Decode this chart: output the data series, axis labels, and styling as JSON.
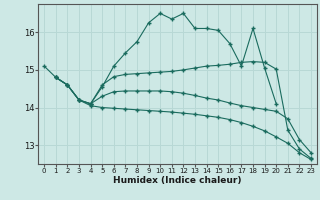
{
  "xlabel": "Humidex (Indice chaleur)",
  "background_color": "#cde8e5",
  "grid_color": "#b8d8d5",
  "line_color": "#1a6b5e",
  "xlim": [
    -0.5,
    23.5
  ],
  "ylim": [
    12.5,
    16.75
  ],
  "yticks": [
    13,
    14,
    15,
    16
  ],
  "xticks": [
    0,
    1,
    2,
    3,
    4,
    5,
    6,
    7,
    8,
    9,
    10,
    11,
    12,
    13,
    14,
    15,
    16,
    17,
    18,
    19,
    20,
    21,
    22,
    23
  ],
  "series": [
    {
      "x": [
        0,
        1,
        2,
        3,
        4,
        5,
        6,
        7,
        8,
        9,
        10,
        11,
        12,
        13,
        14,
        15,
        16,
        17,
        18,
        19,
        20
      ],
      "y": [
        15.1,
        14.8,
        14.6,
        14.2,
        14.1,
        14.55,
        15.1,
        15.45,
        15.75,
        16.25,
        16.5,
        16.35,
        16.5,
        16.1,
        16.1,
        16.05,
        15.7,
        15.1,
        16.1,
        15.05,
        14.1
      ]
    },
    {
      "x": [
        1,
        2,
        3,
        4,
        5,
        6,
        7,
        8,
        9,
        10,
        11,
        12,
        13,
        14,
        15,
        16,
        17,
        18,
        19,
        20,
        21,
        22,
        23
      ],
      "y": [
        14.8,
        14.6,
        14.2,
        14.1,
        14.6,
        14.82,
        14.88,
        14.9,
        14.92,
        14.94,
        14.96,
        15.0,
        15.05,
        15.1,
        15.12,
        15.15,
        15.2,
        15.22,
        15.2,
        15.02,
        13.4,
        12.9,
        12.65
      ]
    },
    {
      "x": [
        1,
        2,
        3,
        4,
        5,
        6,
        7,
        8,
        9,
        10,
        11,
        12,
        13,
        14,
        15,
        16,
        17,
        18,
        19,
        20,
        21,
        22,
        23
      ],
      "y": [
        14.8,
        14.6,
        14.2,
        14.1,
        14.3,
        14.42,
        14.44,
        14.44,
        14.44,
        14.44,
        14.42,
        14.38,
        14.32,
        14.25,
        14.2,
        14.12,
        14.05,
        14.0,
        13.95,
        13.9,
        13.7,
        13.15,
        12.8
      ]
    },
    {
      "x": [
        1,
        2,
        3,
        4,
        5,
        6,
        7,
        8,
        9,
        10,
        11,
        12,
        13,
        14,
        15,
        16,
        17,
        18,
        19,
        20,
        21,
        22,
        23
      ],
      "y": [
        14.8,
        14.6,
        14.2,
        14.05,
        14.0,
        13.98,
        13.96,
        13.94,
        13.92,
        13.9,
        13.88,
        13.85,
        13.82,
        13.78,
        13.74,
        13.68,
        13.6,
        13.5,
        13.38,
        13.22,
        13.05,
        12.8,
        12.62
      ]
    }
  ]
}
